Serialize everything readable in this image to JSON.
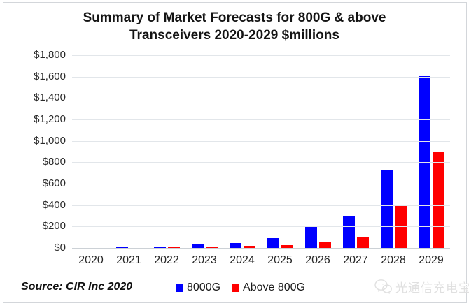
{
  "title": {
    "line1": "Summary of Market Forecasts for 800G & above",
    "line2": "Transceivers 2020-2029 $millions"
  },
  "source": "Source: CIR Inc 2020",
  "legend": {
    "items": [
      {
        "label": "8000G",
        "color": "#0000ff"
      },
      {
        "label": "Above 800G",
        "color": "#ff0000"
      }
    ]
  },
  "watermark": {
    "icon": "wechat-chat-bubbles-icon",
    "text": "光通信充电宝"
  },
  "colors": {
    "blue_series": "#0000ff",
    "red_series": "#ff0000",
    "gridline": "#e2e6ea",
    "baseline": "#ccd1d6",
    "frame_border": "#d3d6da"
  },
  "chart_data": {
    "type": "bar",
    "title": "Summary of Market Forecasts for 800G & above Transceivers 2020-2029 $millions",
    "categories": [
      "2020",
      "2021",
      "2022",
      "2023",
      "2024",
      "2025",
      "2026",
      "2027",
      "2028",
      "2029"
    ],
    "series": [
      {
        "name": "8000G",
        "color": "#0000ff",
        "values": [
          2,
          4,
          15,
          30,
          45,
          90,
          195,
          300,
          720,
          1600
        ]
      },
      {
        "name": "Above 800G",
        "color": "#ff0000",
        "values": [
          0,
          0,
          5,
          10,
          20,
          25,
          50,
          100,
          405,
          900
        ]
      }
    ],
    "xlabel": "",
    "ylabel": "",
    "ylim": [
      0,
      1800
    ],
    "ytick_step": 200,
    "ytick_labels_top_to_bottom": [
      "$1,800",
      "$1,600",
      "$1,400",
      "$1,200",
      "$1,000",
      "$800",
      "$600",
      "$400",
      "$200",
      "$0"
    ],
    "grid": true,
    "legend_position": "bottom"
  }
}
